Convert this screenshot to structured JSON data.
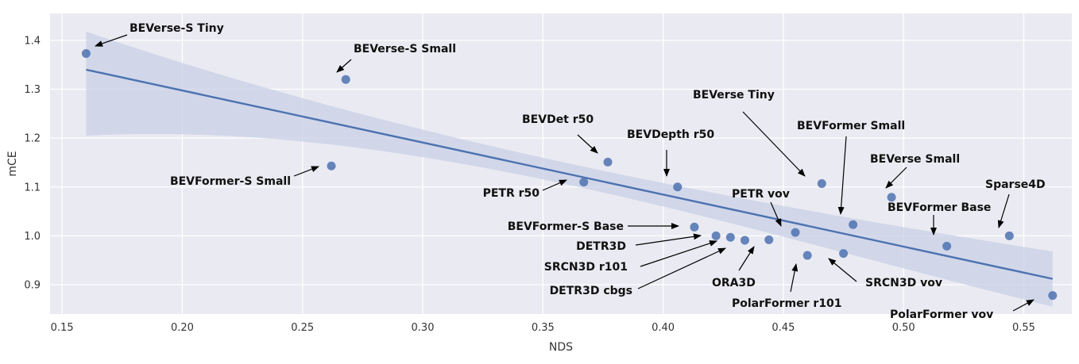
{
  "chart_data": {
    "type": "scatter",
    "title": "",
    "xlabel": "NDS",
    "ylabel": "mCE",
    "xlim": [
      0.145,
      0.57
    ],
    "ylim": [
      0.84,
      1.455
    ],
    "xticks": [
      0.15,
      0.2,
      0.25,
      0.3,
      0.35,
      0.4,
      0.45,
      0.5,
      0.55
    ],
    "xtick_labels": [
      "0.15",
      "0.20",
      "0.25",
      "0.30",
      "0.35",
      "0.40",
      "0.45",
      "0.50",
      "0.55"
    ],
    "yticks": [
      0.9,
      1.0,
      1.1,
      1.2,
      1.3,
      1.4
    ],
    "ytick_labels": [
      "0.9",
      "1.0",
      "1.1",
      "1.2",
      "1.3",
      "1.4"
    ],
    "grid": true,
    "background": "#eaeaf2",
    "point_color": "#4c72b0",
    "regression": {
      "x": [
        0.16,
        0.562
      ],
      "y": [
        1.34,
        0.912
      ],
      "ci_lower": [
        1.205,
        0.855
      ],
      "ci_upper": [
        1.418,
        0.968
      ],
      "line_color": "#4c72b0",
      "band_color": "#c8d0e6"
    },
    "points": [
      {
        "name": "BEVerse-S Tiny",
        "x": 0.16,
        "y": 1.373
      },
      {
        "name": "BEVerse-S Small",
        "x": 0.268,
        "y": 1.32
      },
      {
        "name": "BEVFormer-S Small",
        "x": 0.262,
        "y": 1.143
      },
      {
        "name": "BEVDet r50",
        "x": 0.377,
        "y": 1.151
      },
      {
        "name": "PETR r50",
        "x": 0.367,
        "y": 1.11
      },
      {
        "name": "BEVDepth r50",
        "x": 0.406,
        "y": 1.1
      },
      {
        "name": "BEVFormer-S Base",
        "x": 0.413,
        "y": 1.018
      },
      {
        "name": "DETR3D",
        "x": 0.422,
        "y": 1.0
      },
      {
        "name": "SRCN3D r101",
        "x": 0.428,
        "y": 0.997
      },
      {
        "name": "DETR3D cbgs",
        "x": 0.434,
        "y": 0.991
      },
      {
        "name": "ORA3D",
        "x": 0.444,
        "y": 0.992
      },
      {
        "name": "PETR vov",
        "x": 0.455,
        "y": 1.007
      },
      {
        "name": "PolarFormer r101",
        "x": 0.46,
        "y": 0.96
      },
      {
        "name": "BEVerse Tiny",
        "x": 0.466,
        "y": 1.107
      },
      {
        "name": "SRCN3D vov",
        "x": 0.475,
        "y": 0.964
      },
      {
        "name": "BEVFormer Small",
        "x": 0.479,
        "y": 1.023
      },
      {
        "name": "BEVerse Small",
        "x": 0.495,
        "y": 1.079
      },
      {
        "name": "BEVFormer Base",
        "x": 0.518,
        "y": 0.979
      },
      {
        "name": "Sparse4D",
        "x": 0.544,
        "y": 1.0
      },
      {
        "name": "PolarFormer vov",
        "x": 0.562,
        "y": 0.878
      }
    ]
  }
}
